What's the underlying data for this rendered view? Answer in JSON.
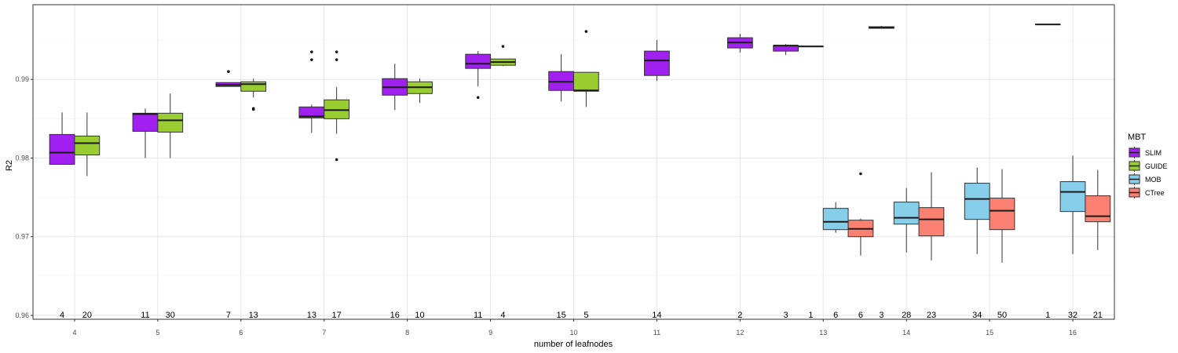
{
  "chart_data": {
    "type": "boxplot",
    "xlabel": "number of leafnodes",
    "ylabel": "R2",
    "ylim": [
      0.9595,
      0.9995
    ],
    "y_ticks": [
      0.96,
      0.97,
      0.98,
      0.99
    ],
    "y_tick_labels": [
      "0.96",
      "0.97",
      "0.98",
      "0.99"
    ],
    "categories": [
      "4",
      "5",
      "6",
      "7",
      "8",
      "9",
      "10",
      "11",
      "12",
      "13",
      "14",
      "15",
      "16"
    ],
    "grid": true,
    "legend": {
      "title": "MBT",
      "position": "right",
      "entries": [
        "SLIM",
        "GUIDE",
        "MOB",
        "CTree"
      ]
    },
    "colors": {
      "SLIM": "#a020f0",
      "GUIDE": "#9acd32",
      "MOB": "#87ceeb",
      "CTree": "#fa8072"
    },
    "series_order": [
      "SLIM",
      "GUIDE",
      "MOB",
      "CTree"
    ],
    "groups": [
      {
        "x": "4",
        "boxes": [
          {
            "series": "SLIM",
            "count": "4",
            "whislo": 0.9792,
            "q1": 0.9792,
            "med": 0.9807,
            "q3": 0.983,
            "whishi": 0.9858,
            "outliers": []
          },
          {
            "series": "GUIDE",
            "count": "20",
            "whislo": 0.9777,
            "q1": 0.9804,
            "med": 0.9819,
            "q3": 0.9828,
            "whishi": 0.9858,
            "outliers": []
          }
        ]
      },
      {
        "x": "5",
        "boxes": [
          {
            "series": "SLIM",
            "count": "11",
            "whislo": 0.98,
            "q1": 0.9834,
            "med": 0.9856,
            "q3": 0.9857,
            "whishi": 0.9863,
            "outliers": []
          },
          {
            "series": "GUIDE",
            "count": "30",
            "whislo": 0.98,
            "q1": 0.9833,
            "med": 0.9848,
            "q3": 0.9857,
            "whishi": 0.9882,
            "outliers": []
          }
        ]
      },
      {
        "x": "6",
        "boxes": [
          {
            "series": "SLIM",
            "count": "7",
            "whislo": 0.9891,
            "q1": 0.9891,
            "med": 0.9893,
            "q3": 0.9896,
            "whishi": 0.9896,
            "outliers": [
              0.991
            ]
          },
          {
            "series": "GUIDE",
            "count": "13",
            "whislo": 0.9877,
            "q1": 0.9885,
            "med": 0.9894,
            "q3": 0.9897,
            "whishi": 0.9901,
            "outliers": [
              0.9863,
              0.9862
            ]
          }
        ]
      },
      {
        "x": "7",
        "boxes": [
          {
            "series": "SLIM",
            "count": "13",
            "whislo": 0.9832,
            "q1": 0.9851,
            "med": 0.9853,
            "q3": 0.9865,
            "whishi": 0.9868,
            "outliers": [
              0.9935,
              0.9925
            ]
          },
          {
            "series": "GUIDE",
            "count": "17",
            "whislo": 0.9831,
            "q1": 0.985,
            "med": 0.9861,
            "q3": 0.9874,
            "whishi": 0.989,
            "outliers": [
              0.9935,
              0.9925,
              0.9798
            ]
          }
        ]
      },
      {
        "x": "8",
        "boxes": [
          {
            "series": "SLIM",
            "count": "16",
            "whislo": 0.9861,
            "q1": 0.988,
            "med": 0.989,
            "q3": 0.9901,
            "whishi": 0.992,
            "outliers": []
          },
          {
            "series": "GUIDE",
            "count": "10",
            "whislo": 0.987,
            "q1": 0.9882,
            "med": 0.989,
            "q3": 0.9897,
            "whishi": 0.9901,
            "outliers": []
          }
        ]
      },
      {
        "x": "9",
        "boxes": [
          {
            "series": "SLIM",
            "count": "11",
            "whislo": 0.9891,
            "q1": 0.9914,
            "med": 0.992,
            "q3": 0.9932,
            "whishi": 0.9936,
            "outliers": [
              0.9877
            ]
          },
          {
            "series": "GUIDE",
            "count": "4",
            "whislo": 0.9917,
            "q1": 0.9918,
            "med": 0.9922,
            "q3": 0.9926,
            "whishi": 0.9926,
            "outliers": [
              0.9942
            ]
          }
        ]
      },
      {
        "x": "10",
        "boxes": [
          {
            "series": "SLIM",
            "count": "15",
            "whislo": 0.9872,
            "q1": 0.9886,
            "med": 0.9897,
            "q3": 0.991,
            "whishi": 0.9932,
            "outliers": []
          },
          {
            "series": "GUIDE",
            "count": "5",
            "whislo": 0.9865,
            "q1": 0.9885,
            "med": 0.9886,
            "q3": 0.9909,
            "whishi": 0.9909,
            "outliers": [
              0.9961
            ]
          }
        ]
      },
      {
        "x": "11",
        "boxes": [
          {
            "series": "SLIM",
            "count": "14",
            "whislo": 0.9898,
            "q1": 0.9905,
            "med": 0.9924,
            "q3": 0.9936,
            "whishi": 0.995,
            "outliers": []
          }
        ]
      },
      {
        "x": "12",
        "boxes": [
          {
            "series": "SLIM",
            "count": "2",
            "whislo": 0.9934,
            "q1": 0.994,
            "med": 0.9947,
            "q3": 0.9953,
            "whishi": 0.9958,
            "outliers": []
          }
        ]
      },
      {
        "x": "13",
        "boxes": [
          {
            "series": "SLIM",
            "count": "3",
            "whislo": 0.9931,
            "q1": 0.9936,
            "med": 0.9943,
            "q3": 0.9943,
            "whishi": 0.9945,
            "outliers": []
          },
          {
            "series": "GUIDE",
            "count": "1",
            "whislo": 0.9942,
            "q1": 0.9942,
            "med": 0.9942,
            "q3": 0.9942,
            "whishi": 0.9942,
            "outliers": []
          },
          {
            "series": "MOB",
            "count": "6",
            "whislo": 0.9705,
            "q1": 0.9709,
            "med": 0.9719,
            "q3": 0.9736,
            "whishi": 0.9744,
            "outliers": []
          },
          {
            "series": "CTree",
            "count": "6",
            "whislo": 0.9676,
            "q1": 0.97,
            "med": 0.971,
            "q3": 0.9721,
            "whishi": 0.9723,
            "outliers": [
              0.978
            ]
          }
        ]
      },
      {
        "x": "14",
        "boxes": [
          {
            "series": "SLIM",
            "count": "3",
            "whislo": 0.9965,
            "q1": 0.9965,
            "med": 0.9966,
            "q3": 0.9967,
            "whishi": 0.9968,
            "outliers": []
          },
          {
            "series": "MOB",
            "count": "28",
            "whislo": 0.968,
            "q1": 0.9716,
            "med": 0.9724,
            "q3": 0.9744,
            "whishi": 0.9762,
            "outliers": []
          },
          {
            "series": "CTree",
            "count": "23",
            "whislo": 0.967,
            "q1": 0.9701,
            "med": 0.9722,
            "q3": 0.9737,
            "whishi": 0.9782,
            "outliers": []
          }
        ]
      },
      {
        "x": "15",
        "boxes": [
          {
            "series": "MOB",
            "count": "34",
            "whislo": 0.9678,
            "q1": 0.9722,
            "med": 0.9748,
            "q3": 0.9768,
            "whishi": 0.9788,
            "outliers": []
          },
          {
            "series": "CTree",
            "count": "50",
            "whislo": 0.9667,
            "q1": 0.9709,
            "med": 0.9733,
            "q3": 0.9749,
            "whishi": 0.9786,
            "outliers": []
          }
        ]
      },
      {
        "x": "16",
        "boxes": [
          {
            "series": "SLIM",
            "count": "1",
            "whislo": 0.997,
            "q1": 0.997,
            "med": 0.997,
            "q3": 0.997,
            "whishi": 0.997,
            "outliers": []
          },
          {
            "series": "MOB",
            "count": "32",
            "whislo": 0.9678,
            "q1": 0.9732,
            "med": 0.9757,
            "q3": 0.977,
            "whishi": 0.9803,
            "outliers": []
          },
          {
            "series": "CTree",
            "count": "21",
            "whislo": 0.9683,
            "q1": 0.9719,
            "med": 0.9726,
            "q3": 0.9752,
            "whishi": 0.9785,
            "outliers": []
          }
        ]
      }
    ]
  }
}
